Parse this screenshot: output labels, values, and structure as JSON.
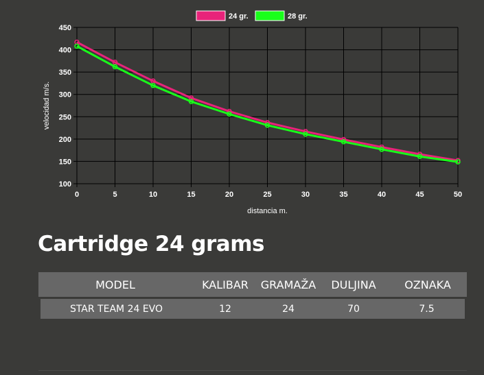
{
  "chart_data": {
    "type": "line",
    "x": [
      0,
      5,
      10,
      15,
      20,
      25,
      30,
      35,
      40,
      45,
      50
    ],
    "series": [
      {
        "name": "24 gr.",
        "color": "#e8237a",
        "values": [
          417,
          372,
          330,
          292,
          262,
          237,
          217,
          199,
          182,
          166,
          152
        ]
      },
      {
        "name": "28 gr.",
        "color": "#19ff1a",
        "values": [
          408,
          362,
          320,
          284,
          256,
          231,
          211,
          194,
          177,
          161,
          149
        ]
      }
    ],
    "xlabel": "distancia m.",
    "ylabel": "velocidad m/s.",
    "xlim": [
      0,
      50
    ],
    "ylim": [
      100,
      450
    ],
    "xticks": [
      0,
      5,
      10,
      15,
      20,
      25,
      30,
      35,
      40,
      45,
      50
    ],
    "yticks": [
      100,
      150,
      200,
      250,
      300,
      350,
      400,
      450
    ],
    "grid": true,
    "legend": "top-center"
  },
  "section": {
    "title": "Cartridge 24 grams"
  },
  "table": {
    "headers": [
      "MODEL",
      "KALIBAR",
      "GRAMAŽA",
      "DULJINA",
      "OZNAKA"
    ],
    "rows": [
      [
        "STAR TEAM 24 EVO",
        "12",
        "24",
        "70",
        "7.5"
      ]
    ]
  }
}
